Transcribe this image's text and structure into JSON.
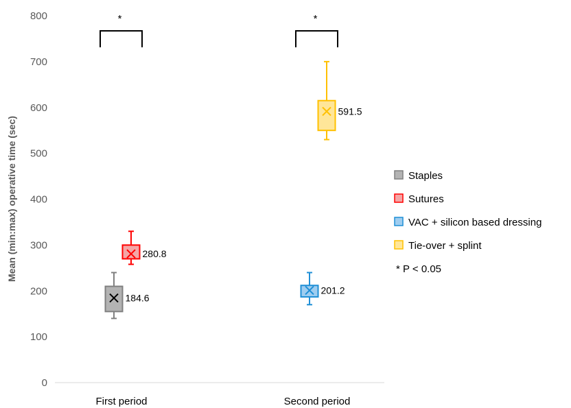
{
  "chart_data": {
    "type": "box",
    "ylabel": "Mean (min:max) operative time (sec)",
    "xlabel": "",
    "ylim": [
      0,
      800
    ],
    "yticks": [
      0,
      100,
      200,
      300,
      400,
      500,
      600,
      700,
      800
    ],
    "categories": [
      "First period",
      "Second period"
    ],
    "series": [
      {
        "name": "Staples",
        "category": "First period",
        "color": "#808080",
        "fill": "#b3b3b3",
        "min": 140,
        "q1": 155,
        "q3": 210,
        "max": 240,
        "mean": 184.6,
        "mean_label": "184.6"
      },
      {
        "name": "Sutures",
        "category": "First period",
        "color": "#ff0000",
        "fill": "#f4a6a6",
        "min": 258,
        "q1": 270,
        "q3": 300,
        "max": 330,
        "mean": 280.8,
        "mean_label": "280.8"
      },
      {
        "name": "VAC + silicon based dressing",
        "category": "Second period",
        "color": "#1f8fd6",
        "fill": "#9fcdf0",
        "min": 170,
        "q1": 187,
        "q3": 212,
        "max": 240,
        "mean": 201.2,
        "mean_label": "201.2"
      },
      {
        "name": "Tie-over + splint",
        "category": "Second period",
        "color": "#ffc000",
        "fill": "#ffe699",
        "min": 530,
        "q1": 550,
        "q3": 615,
        "max": 700,
        "mean": 591.5,
        "mean_label": "591.5"
      }
    ],
    "significance": [
      {
        "category": "First period",
        "label": "*"
      },
      {
        "category": "Second period",
        "label": "*"
      }
    ],
    "legend_note": "* P < 0.05",
    "legend_position": "right",
    "grid": false
  }
}
